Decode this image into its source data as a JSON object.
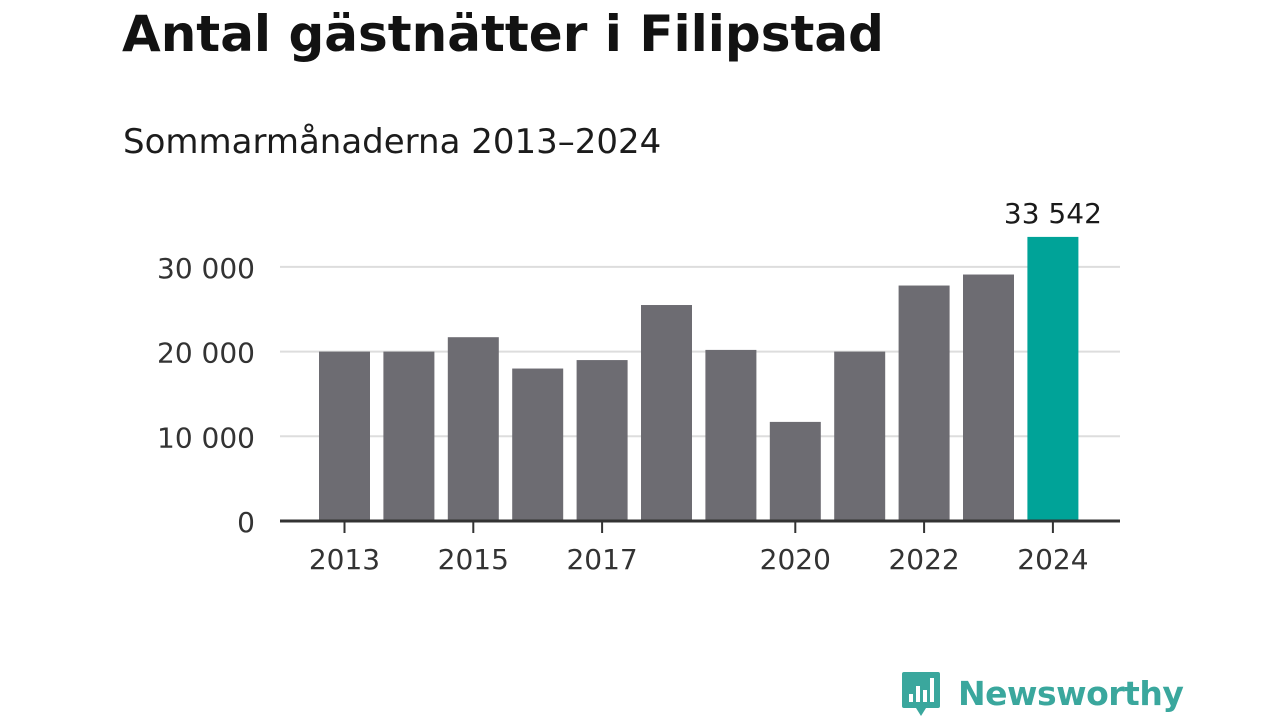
{
  "header": {
    "title": "Antal gästnätter i Filipstad",
    "subtitle": "Sommarmånaderna 2013–2024"
  },
  "brand": {
    "name": "Newsworthy",
    "icon": "newsworthy-logo-icon",
    "color": "#3aa79d"
  },
  "colors": {
    "bar": "#6d6c72",
    "highlight": "#00a398",
    "grid": "#dddddd",
    "axis": "#333333",
    "text": "#333333"
  },
  "chart_data": {
    "type": "bar",
    "title": "Antal gästnätter i Filipstad",
    "subtitle": "Sommarmånaderna 2013–2024",
    "xlabel": "",
    "ylabel": "",
    "categories": [
      "2013",
      "2014",
      "2015",
      "2016",
      "2017",
      "2018",
      "2019",
      "2020",
      "2021",
      "2022",
      "2023",
      "2024"
    ],
    "values": [
      20000,
      20000,
      21700,
      18000,
      19000,
      25500,
      20200,
      11700,
      20000,
      27800,
      29100,
      33542
    ],
    "x_tick_labels": [
      "2013",
      "2015",
      "2017",
      "2020",
      "2022",
      "2024"
    ],
    "y_ticks": [
      0,
      10000,
      20000,
      30000
    ],
    "y_tick_labels": [
      "0",
      "10 000",
      "20 000",
      "30 000"
    ],
    "ylim": [
      0,
      33542
    ],
    "grid": true,
    "legend": "none",
    "highlight_index": 11,
    "annotation": {
      "category": "2024",
      "label": "33 542"
    }
  }
}
